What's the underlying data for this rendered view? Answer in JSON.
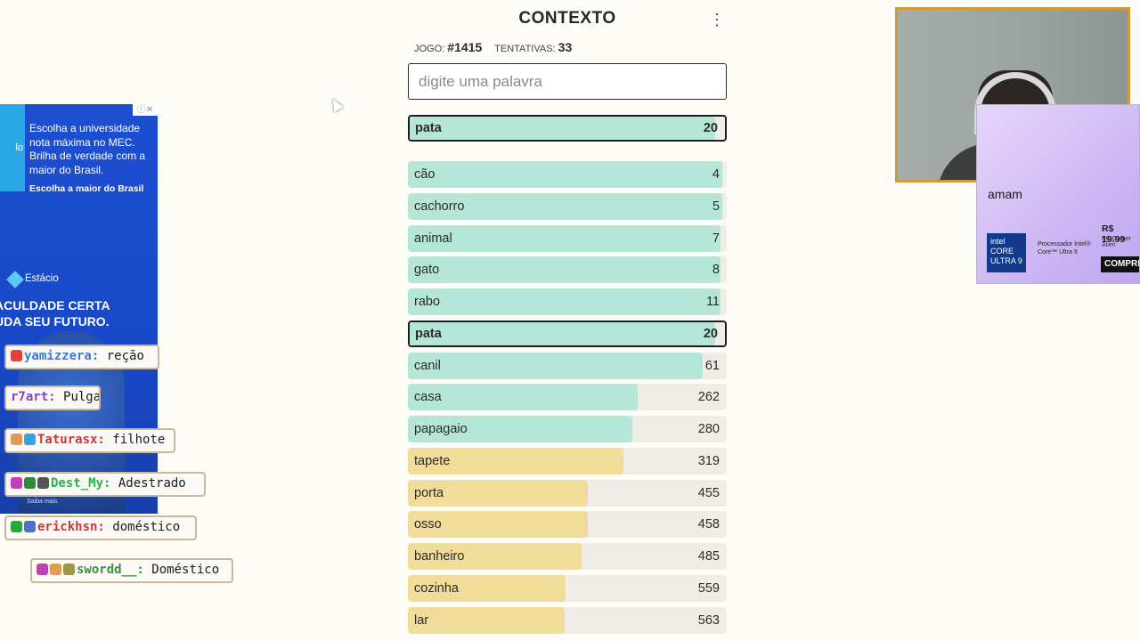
{
  "game": {
    "title": "CONTEXTO",
    "game_label": "JOGO:",
    "game_number": "#1415",
    "attempts_label": "TENTATIVAS:",
    "attempts": "33",
    "input_placeholder": "digite uma palavra",
    "last_guess": {
      "word": "pata",
      "rank": "20",
      "fraction": 0.97,
      "color": "#b6e6d8"
    },
    "guesses": [
      {
        "word": "cão",
        "rank": "4",
        "fraction": 0.985,
        "color": "#b6e6d8"
      },
      {
        "word": "cachorro",
        "rank": "5",
        "fraction": 0.985,
        "color": "#b6e6d8"
      },
      {
        "word": "animal",
        "rank": "7",
        "fraction": 0.98,
        "color": "#b6e6d8"
      },
      {
        "word": "gato",
        "rank": "8",
        "fraction": 0.98,
        "color": "#b6e6d8"
      },
      {
        "word": "rabo",
        "rank": "11",
        "fraction": 0.98,
        "color": "#b6e6d8"
      },
      {
        "word": "pata",
        "rank": "20",
        "fraction": 0.97,
        "color": "#b6e6d8",
        "highlight": true
      },
      {
        "word": "canil",
        "rank": "61",
        "fraction": 0.925,
        "color": "#b6e6d8"
      },
      {
        "word": "casa",
        "rank": "262",
        "fraction": 0.72,
        "color": "#b6e6d8"
      },
      {
        "word": "papagaio",
        "rank": "280",
        "fraction": 0.705,
        "color": "#b6e6d8"
      },
      {
        "word": "tapete",
        "rank": "319",
        "fraction": 0.675,
        "color": "#f1dc9a"
      },
      {
        "word": "porta",
        "rank": "455",
        "fraction": 0.565,
        "color": "#f1dc9a"
      },
      {
        "word": "osso",
        "rank": "458",
        "fraction": 0.563,
        "color": "#f1dc9a"
      },
      {
        "word": "banheiro",
        "rank": "485",
        "fraction": 0.545,
        "color": "#f1dc9a"
      },
      {
        "word": "cozinha",
        "rank": "559",
        "fraction": 0.495,
        "color": "#f1dc9a"
      },
      {
        "word": "lar",
        "rank": "563",
        "fraction": 0.492,
        "color": "#f1dc9a"
      }
    ]
  },
  "ad_left": {
    "text": "Escolha a universidade nota máxima no MEC. Brilha de verdade com a maior do Brasil.",
    "cta": "Escolha a maior do Brasil",
    "badge": "lo",
    "brand": "Estácio",
    "slogan_line1": "ACULDADE CERTA",
    "slogan_line2": "UDA SEU FUTURO.",
    "footer": "Saiba mais"
  },
  "chat": [
    {
      "user": "yamizzera:",
      "msg": "reção",
      "user_color": "#3a7bd5",
      "badges": [
        "#e0403a"
      ]
    },
    {
      "user": "r7art:",
      "msg": "Pulga",
      "user_color": "#8a3fc8",
      "badges": []
    },
    {
      "user": "Taturasx:",
      "msg": "filhote",
      "user_color": "#d0343a",
      "badges": [
        "#e39a52",
        "#3aa0e0"
      ]
    },
    {
      "user": "Dest_My:",
      "msg": "Adestrado",
      "user_color": "#26b34a",
      "badges": [
        "#c23fb5",
        "#2e8a3c",
        "#555555"
      ]
    },
    {
      "user": "erickhsn:",
      "msg": "doméstico",
      "user_color": "#d0343a",
      "badges": [
        "#27a83c",
        "#4a6fd0"
      ]
    },
    {
      "user": "swordd__:",
      "msg": "Doméstico",
      "user_color": "#3f8f3f",
      "badges": [
        "#c23fb5",
        "#e39a52",
        "#9a9a3a"
      ]
    }
  ],
  "ad_right": {
    "heading": "amam",
    "price": "R$ 19.99",
    "subprice": "PC Gamer Alien",
    "chip": "intel CORE ULTRA 9",
    "processor": "Processador Intel® Core™ Ultra 9",
    "buy": "COMPRE"
  }
}
